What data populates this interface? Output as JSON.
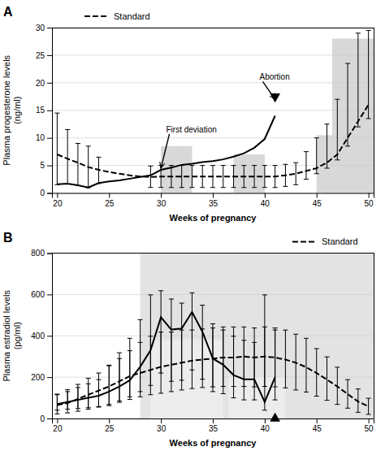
{
  "chart_data": [
    {
      "type": "line",
      "title": "A",
      "xlabel": "Weeks of pregnancy",
      "ylabel": "Plasma progesterone levels\n(ng/ml)",
      "xlim": [
        19.5,
        50.5
      ],
      "ylim": [
        0,
        30
      ],
      "xticks": [
        20,
        25,
        30,
        35,
        40,
        45,
        50
      ],
      "yticks": [
        0,
        5,
        10,
        15,
        20,
        25,
        30
      ],
      "grid": true,
      "legend": "upper left",
      "series": [
        {
          "x": [
            20,
            21,
            22,
            23,
            24,
            25,
            26,
            27,
            28,
            29,
            30,
            31,
            32,
            33,
            34,
            35,
            36,
            37,
            38,
            39,
            40,
            41
          ],
          "values": [
            1.6,
            1.7,
            1.4,
            1.0,
            1.8,
            2.1,
            2.3,
            2.6,
            2.9,
            3.2,
            4.2,
            4.6,
            5.1,
            5.3,
            5.6,
            5.8,
            6.1,
            6.6,
            7.2,
            8.2,
            9.8,
            14.0
          ],
          "color": "#000000",
          "line_style": "solid",
          "error_minus": [
            0.08,
            0.085,
            0.07,
            0.05,
            0.09,
            null,
            null,
            null,
            null,
            null,
            null,
            null,
            null,
            null,
            null,
            null,
            null,
            null,
            null,
            null,
            null,
            null
          ],
          "error_plus": [
            12.9,
            9.8,
            7.6,
            7.5,
            4.7,
            null,
            null,
            null,
            null,
            null,
            null,
            null,
            null,
            null,
            null,
            null,
            null,
            null,
            null,
            null,
            null,
            null
          ]
        },
        {
          "name": "Standard",
          "x": [
            20,
            21,
            22,
            23,
            24,
            25,
            26,
            27,
            28,
            29,
            30,
            31,
            32,
            33,
            34,
            35,
            36,
            37,
            38,
            39,
            40,
            41,
            42,
            43,
            44,
            45,
            46,
            47,
            48,
            49,
            50
          ],
          "values": [
            7.0,
            6.2,
            5.5,
            4.7,
            4.2,
            3.8,
            3.5,
            3.2,
            3.0,
            2.9,
            3.0,
            3.0,
            3.0,
            3.0,
            3.0,
            3.0,
            3.0,
            3.0,
            3.0,
            3.0,
            3.0,
            3.0,
            3.2,
            3.5,
            4.0,
            4.5,
            5.5,
            7.0,
            10.0,
            13.0,
            16.0
          ],
          "color": "#000000",
          "line_style": "dashed",
          "error_minus": [
            null,
            null,
            null,
            null,
            null,
            null,
            null,
            null,
            null,
            1.9,
            2.0,
            2.0,
            2.0,
            2.0,
            2.0,
            2.0,
            2.0,
            2.0,
            2.0,
            2.0,
            2.0,
            2.0,
            2.0,
            2.0,
            1.5,
            1.0,
            1.0,
            1.0,
            1.5,
            1.0,
            2.5
          ],
          "error_plus": [
            null,
            null,
            null,
            null,
            null,
            null,
            null,
            null,
            null,
            2.0,
            2.0,
            2.0,
            2.0,
            2.0,
            2.0,
            2.0,
            2.0,
            2.0,
            2.0,
            2.0,
            2.0,
            2.0,
            2.0,
            2.0,
            3.5,
            5.5,
            7.0,
            10.0,
            13.5,
            16.0,
            13.5
          ]
        }
      ],
      "shaded_bars": [
        {
          "x": 30.0,
          "width": 3.0,
          "height": 8.5
        },
        {
          "x": 37.0,
          "width": 3.0,
          "height": 7.0
        },
        {
          "x": 45.0,
          "width": 1.5,
          "height": 10.5
        },
        {
          "x": 46.5,
          "width": 4.0,
          "height": 28.0
        }
      ],
      "annotations": [
        {
          "text": "First deviation",
          "x": 30,
          "y": 4.5,
          "text_x": 30.5,
          "text_y": 11.0
        },
        {
          "text": "Abortion",
          "x": 41,
          "y": 17.0,
          "text_x": 39.5,
          "text_y": 20.5
        },
        {
          "marker": "triangle-down",
          "x": 41,
          "y": 17.5
        }
      ]
    },
    {
      "type": "line",
      "title": "B",
      "xlabel": "Weeks of pregnancy",
      "ylabel": "Plasma estradiol levels\n(pg/ml)",
      "xlim": [
        19.5,
        50.5
      ],
      "ylim": [
        0,
        800
      ],
      "xticks": [
        20,
        25,
        30,
        35,
        40,
        45,
        50
      ],
      "yticks": [
        0,
        200,
        400,
        600,
        800
      ],
      "grid": true,
      "legend": "upper right",
      "series": [
        {
          "x": [
            20,
            21,
            22,
            23,
            24,
            25,
            26,
            27,
            28,
            29,
            30,
            31,
            32,
            33,
            34,
            35,
            36,
            37,
            38,
            39,
            40,
            41
          ],
          "values": [
            70,
            80,
            90,
            100,
            110,
            130,
            155,
            185,
            250,
            330,
            490,
            430,
            435,
            515,
            420,
            290,
            260,
            210,
            190,
            190,
            80,
            200
          ],
          "color": "#000000",
          "line_style": "solid",
          "error_minus": [
            30,
            35,
            42,
            48,
            52,
            62,
            70,
            80,
            120,
            170,
            270,
            250,
            250,
            280,
            230,
            160,
            140,
            110,
            100,
            100,
            40,
            110
          ],
          "error_plus": [
            45,
            50,
            60,
            68,
            78,
            128,
            163,
            203,
            228,
            268,
            128,
            148,
            123,
            93,
            128,
            168,
            168,
            188,
            188,
            178,
            518,
            228
          ]
        },
        {
          "name": "Standard",
          "x": [
            20,
            21,
            22,
            23,
            24,
            25,
            26,
            27,
            28,
            29,
            30,
            31,
            32,
            33,
            34,
            35,
            36,
            37,
            38,
            39,
            40,
            41,
            42,
            43,
            44,
            45,
            46,
            47,
            48,
            49,
            50
          ],
          "values": [
            65,
            75,
            95,
            115,
            135,
            155,
            180,
            205,
            220,
            235,
            250,
            260,
            270,
            280,
            285,
            290,
            295,
            295,
            300,
            295,
            300,
            295,
            285,
            270,
            248,
            220,
            188,
            155,
            118,
            82,
            58
          ],
          "color": "#000000",
          "line_style": "dashed",
          "error_minus": [
            43,
            48,
            60,
            70,
            80,
            93,
            102,
            113,
            115,
            120,
            128,
            130,
            132,
            135,
            135,
            137,
            140,
            140,
            145,
            142,
            145,
            142,
            137,
            132,
            120,
            112,
            100,
            87,
            68,
            52,
            38
          ],
          "error_plus": [
            53,
            65,
            70,
            80,
            85,
            100,
            110,
            123,
            148,
            163,
            168,
            158,
            158,
            148,
            148,
            148,
            148,
            148,
            143,
            143,
            143,
            143,
            143,
            138,
            140,
            118,
            110,
            93,
            70,
            61,
            40
          ]
        }
      ],
      "shaded_region": {
        "x_start": 28.0,
        "x_end": 50.5
      },
      "shaded_bars": [
        {
          "x": 29.0,
          "width": 7.0,
          "height": 380
        },
        {
          "x": 36.5,
          "width": 5.5,
          "height": 200
        }
      ],
      "annotations": [
        {
          "marker": "triangle-up",
          "x": 41.0,
          "y": 0
        }
      ]
    }
  ]
}
